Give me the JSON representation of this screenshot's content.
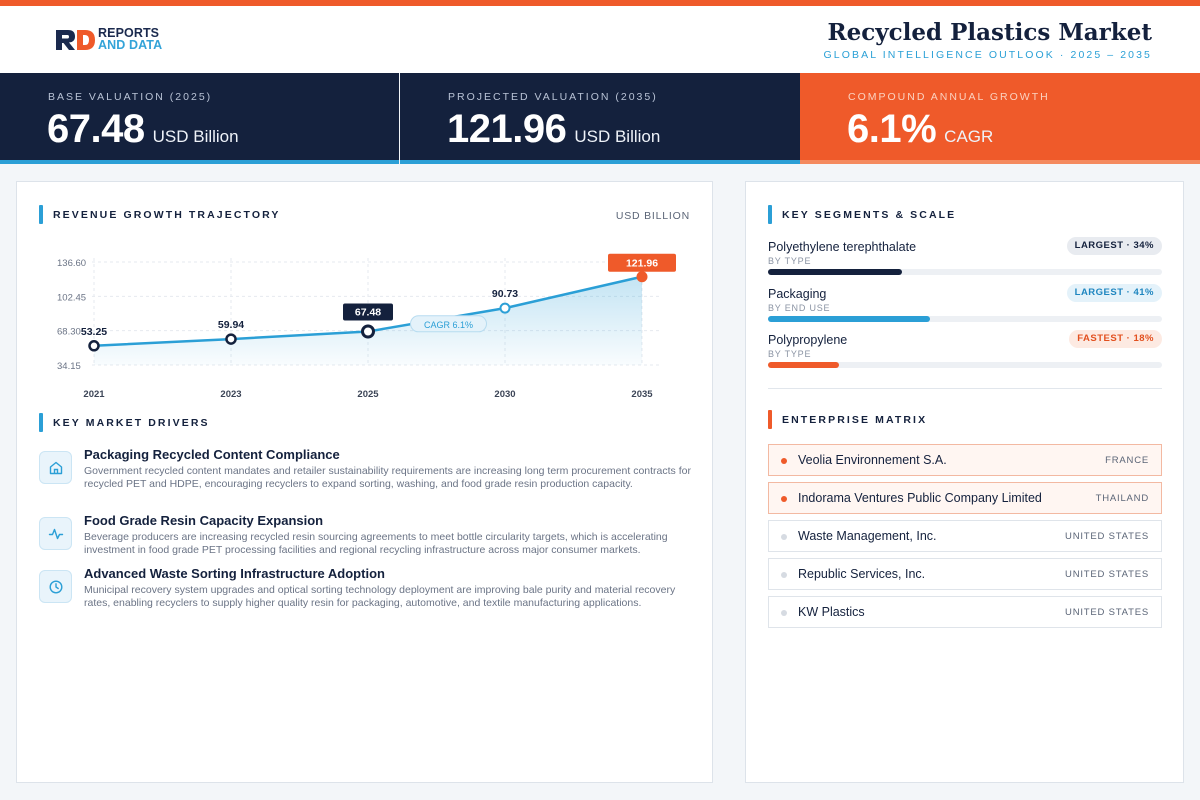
{
  "brand": {
    "logo_line1": "REPORTS",
    "logo_line2": "AND DATA"
  },
  "header": {
    "title": "Recycled Plastics Market",
    "subtitle": "GLOBAL INTELLIGENCE OUTLOOK  ·  2025 – 2035"
  },
  "kpis": [
    {
      "label": "BASE VALUATION (2025)",
      "value": "67.48",
      "unit": "USD Billion"
    },
    {
      "label": "PROJECTED VALUATION (2035)",
      "value": "121.96",
      "unit": "USD Billion"
    },
    {
      "label": "COMPOUND ANNUAL GROWTH",
      "value": "6.1%",
      "unit": "CAGR"
    }
  ],
  "revenue": {
    "section_title": "REVENUE GROWTH TRAJECTORY",
    "unit_label": "USD BILLION"
  },
  "chart_data": {
    "type": "area",
    "title": "REVENUE GROWTH TRAJECTORY",
    "ylabel": "USD BILLION",
    "categories": [
      "2021",
      "2023",
      "2025",
      "2030",
      "2035"
    ],
    "series": [
      {
        "values": [
          53.25,
          59.94,
          67.48,
          90.73,
          121.96
        ]
      }
    ],
    "data_labels": [
      "53.25",
      "59.94",
      "67.48",
      "90.73",
      "121.96"
    ],
    "y_ticks": [
      34.15,
      68.3,
      102.45,
      136.6
    ],
    "y_tick_labels": [
      "34.15",
      "68.30",
      "102.45",
      "136.60"
    ],
    "ylim": [
      34.15,
      136.6
    ],
    "annotation": "CAGR 6.1%",
    "grid": true,
    "colors": {
      "line": "#2b9fd6",
      "highlight": "#14213d",
      "end": "#ef5a2a"
    }
  },
  "drivers": {
    "section_title": "KEY MARKET DRIVERS",
    "items": [
      {
        "icon": "home-icon",
        "title": "Packaging Recycled Content Compliance",
        "text": "Government recycled content mandates and retailer sustainability requirements are increasing long term procurement contracts for recycled PET and HDPE, encouraging recyclers to expand sorting, washing, and food grade resin production capacity."
      },
      {
        "icon": "activity-icon",
        "title": "Food Grade Resin Capacity Expansion",
        "text": "Beverage producers are increasing recycled resin sourcing agreements to meet bottle circularity targets, which is accelerating investment in food grade PET processing facilities and regional recycling infrastructure across major consumer markets."
      },
      {
        "icon": "clock-icon",
        "title": "Advanced Waste Sorting Infrastructure Adoption",
        "text": "Municipal recovery system upgrades and optical sorting technology deployment are improving bale purity and material recovery rates, enabling recyclers to supply higher quality resin for packaging, automotive, and textile manufacturing applications."
      }
    ]
  },
  "segments": {
    "section_title": "KEY SEGMENTS & SCALE",
    "items": [
      {
        "name": "Polyethylene terephthalate",
        "type": "BY TYPE",
        "badge": "LARGEST · 34%",
        "share": 34,
        "color": "#14213d",
        "badge_bg": "#e8ebf0",
        "badge_fg": "#14213d"
      },
      {
        "name": "Packaging",
        "type": "BY END USE",
        "badge": "LARGEST · 41%",
        "share": 41,
        "color": "#2b9fd6",
        "badge_bg": "#e4f2fa",
        "badge_fg": "#1f86c0"
      },
      {
        "name": "Polypropylene",
        "type": "BY TYPE",
        "badge": "FASTEST · 18%",
        "share": 18,
        "color": "#ef5a2a",
        "badge_bg": "#fdeae2",
        "badge_fg": "#e2501f"
      }
    ]
  },
  "enterprise": {
    "section_title": "ENTERPRISE MATRIX",
    "items": [
      {
        "name": "Veolia Environnement S.A.",
        "country": "FRANCE",
        "highlight": true
      },
      {
        "name": "Indorama Ventures Public Company Limited",
        "country": "THAILAND",
        "highlight": true
      },
      {
        "name": "Waste Management, Inc.",
        "country": "UNITED STATES",
        "highlight": false
      },
      {
        "name": "Republic Services, Inc.",
        "country": "UNITED STATES",
        "highlight": false
      },
      {
        "name": "KW Plastics",
        "country": "UNITED STATES",
        "highlight": false
      }
    ]
  }
}
